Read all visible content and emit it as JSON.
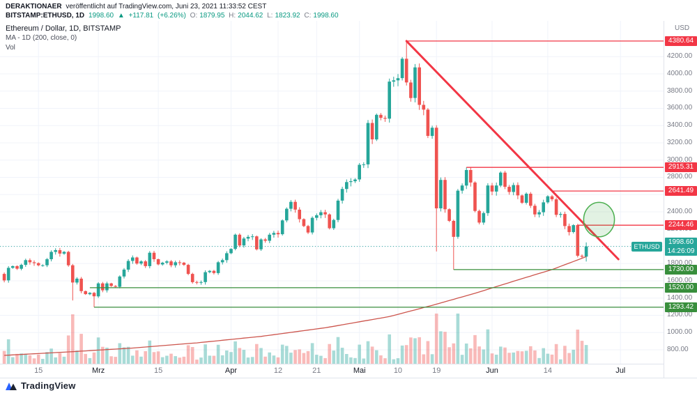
{
  "page": {
    "byline_author": "DERAKTIONAER",
    "byline_rest": "veröffentlicht auf TradingView.com, Juni 23, 2021 11:33:52 CEST",
    "symbol_line": {
      "symbol": "BITSTAMP:ETHUSD, 1D",
      "last": "1998.60",
      "arrow": "▲",
      "change_abs": "+117.81",
      "change_pct": "(+6.26%)",
      "o_label": "O:",
      "o": "1879.95",
      "h_label": "H:",
      "h": "2044.62",
      "l_label": "L:",
      "l": "1823.92",
      "c_label": "C:",
      "c": "1998.60"
    }
  },
  "legend": {
    "title": "Ethereum / Dollar, 1D, BITSTAMP",
    "ma": "MA - 1D (200, close, 0)",
    "vol": "Vol"
  },
  "axis": {
    "unit": "USD"
  },
  "footer": {
    "brand": "TradingView"
  },
  "colors": {
    "up": "#26a69a",
    "down": "#ef5350",
    "vol_up": "rgba(38,166,154,0.40)",
    "vol_down": "rgba(239,83,80,0.40)",
    "grid": "#f0f3fa",
    "axis_text": "#787b86",
    "text_dark": "#131722",
    "red_level": "#f23645",
    "green_level": "#388e3c",
    "teal": "#26a69a",
    "trend": "#f23645",
    "ma": "#cc544c",
    "ellipse_stroke": "#4caf50",
    "ellipse_fill": "rgba(76,175,80,0.16)",
    "change_green": "#089981"
  },
  "chart_data": {
    "type": "candlestick",
    "title": "Ethereum / Dollar, 1D, BITSTAMP",
    "symbol": "ETHUSD",
    "exchange": "BITSTAMP",
    "interval": "1D",
    "start_date": "2021-02-07",
    "first_open": 1680,
    "closes": [
      1605,
      1750,
      1770,
      1740,
      1785,
      1840,
      1815,
      1805,
      1780,
      1780,
      1850,
      1935,
      1955,
      1915,
      1935,
      1780,
      1580,
      1625,
      1480,
      1445,
      1460,
      1420,
      1570,
      1490,
      1570,
      1540,
      1530,
      1650,
      1730,
      1830,
      1870,
      1800,
      1825,
      1770,
      1925,
      1850,
      1790,
      1810,
      1825,
      1780,
      1815,
      1810,
      1785,
      1680,
      1585,
      1580,
      1585,
      1700,
      1715,
      1690,
      1815,
      1840,
      1920,
      1970,
      2135,
      2010,
      2090,
      2110,
      2115,
      1965,
      2080,
      2065,
      2135,
      2155,
      2140,
      2300,
      2435,
      2515,
      2425,
      2315,
      2235,
      2160,
      2330,
      2360,
      2395,
      2370,
      2210,
      2305,
      2530,
      2665,
      2745,
      2755,
      2775,
      2945,
      2950,
      3430,
      3240,
      3525,
      3490,
      3480,
      3910,
      3925,
      3950,
      4175,
      3900,
      3720,
      4075,
      3640,
      3585,
      3280,
      3375,
      2440,
      2770,
      2430,
      2295,
      2110,
      2645,
      2705,
      2885,
      2740,
      2410,
      2275,
      2385,
      2705,
      2635,
      2705,
      2855,
      2690,
      2630,
      2710,
      2590,
      2505,
      2610,
      2470,
      2370,
      2395,
      2510,
      2580,
      2545,
      2365,
      2375,
      2235,
      2165,
      2245,
      1890,
      1880,
      1998.6
    ],
    "overrides": {
      "16": {
        "low": 1372
      },
      "21": {
        "low": 1293.42
      },
      "94": {
        "high": 4380.64
      },
      "101": {
        "low": 1940
      },
      "105": {
        "low": 1730
      },
      "136": {
        "open": 1879.95,
        "high": 2044.62,
        "low": 1823.92
      }
    },
    "wick_model": {
      "base": 0.006,
      "spread": 0.013
    },
    "volume_model": {
      "base": 5,
      "scale": 300,
      "max": 72,
      "emphasis": {
        "15": 1.4,
        "16": 1.7,
        "17": 1.3,
        "18": 1.2,
        "85": 0.6,
        "87": 0.6,
        "91": 0.7,
        "95": 2,
        "134": 0.9,
        "135": 5
      }
    },
    "ma200_points": [
      [
        0,
        735
      ],
      [
        15,
        775
      ],
      [
        30,
        820
      ],
      [
        45,
        880
      ],
      [
        60,
        955
      ],
      [
        75,
        1055
      ],
      [
        90,
        1185
      ],
      [
        100,
        1315
      ],
      [
        110,
        1455
      ],
      [
        120,
        1610
      ],
      [
        128,
        1730
      ],
      [
        136,
        1880
      ]
    ],
    "levels": [
      {
        "label": "4380.64",
        "price": 4380.64,
        "color": "#f23645",
        "start_index": 94
      },
      {
        "label": "2915.31",
        "price": 2915.31,
        "color": "#f23645",
        "start_index": 108
      },
      {
        "label": "2641.49",
        "price": 2641.49,
        "color": "#f23645",
        "start_index": 128
      },
      {
        "label": "2244.46",
        "price": 2244.46,
        "color": "#f23645",
        "start_index": 134
      },
      {
        "label": "1730.00",
        "price": 1730,
        "color": "#388e3c",
        "start_index": 105
      },
      {
        "label": "1520.00",
        "price": 1520,
        "color": "#388e3c",
        "start_index": 20
      },
      {
        "label": "1293.42",
        "price": 1293.42,
        "color": "#388e3c",
        "start_index": 21
      }
    ],
    "trendline": {
      "from_index": 94,
      "from_price": 4380.64,
      "to_index": 143.5,
      "to_price": 1850
    },
    "highlight_ellipse": {
      "center_index": 139,
      "center_price": 2310,
      "rx_days": 3.6,
      "ry_price": 200
    },
    "last_price_line": {
      "price": 1998.6,
      "label": "1998.60",
      "countdown": "14:26:09",
      "symbol_tag": "ETHUSD"
    },
    "y_axis": {
      "grid_min": 800,
      "grid_max": 4200,
      "grid_step": 200,
      "top_price": 4614,
      "bottom_price": 638
    },
    "x_labels": [
      {
        "index": 8,
        "text": "15",
        "month": false
      },
      {
        "index": 22,
        "text": "Mrz",
        "month": true
      },
      {
        "index": 36,
        "text": "15",
        "month": false
      },
      {
        "index": 53,
        "text": "Apr",
        "month": true
      },
      {
        "index": 64,
        "text": "12",
        "month": false
      },
      {
        "index": 73,
        "text": "21",
        "month": false
      },
      {
        "index": 83,
        "text": "Mai",
        "month": true
      },
      {
        "index": 92,
        "text": "10",
        "month": false
      },
      {
        "index": 101,
        "text": "19",
        "month": false
      },
      {
        "index": 114,
        "text": "Jun",
        "month": true
      },
      {
        "index": 127,
        "text": "14",
        "month": false
      },
      {
        "index": 144,
        "text": "Jul",
        "month": true
      }
    ]
  }
}
